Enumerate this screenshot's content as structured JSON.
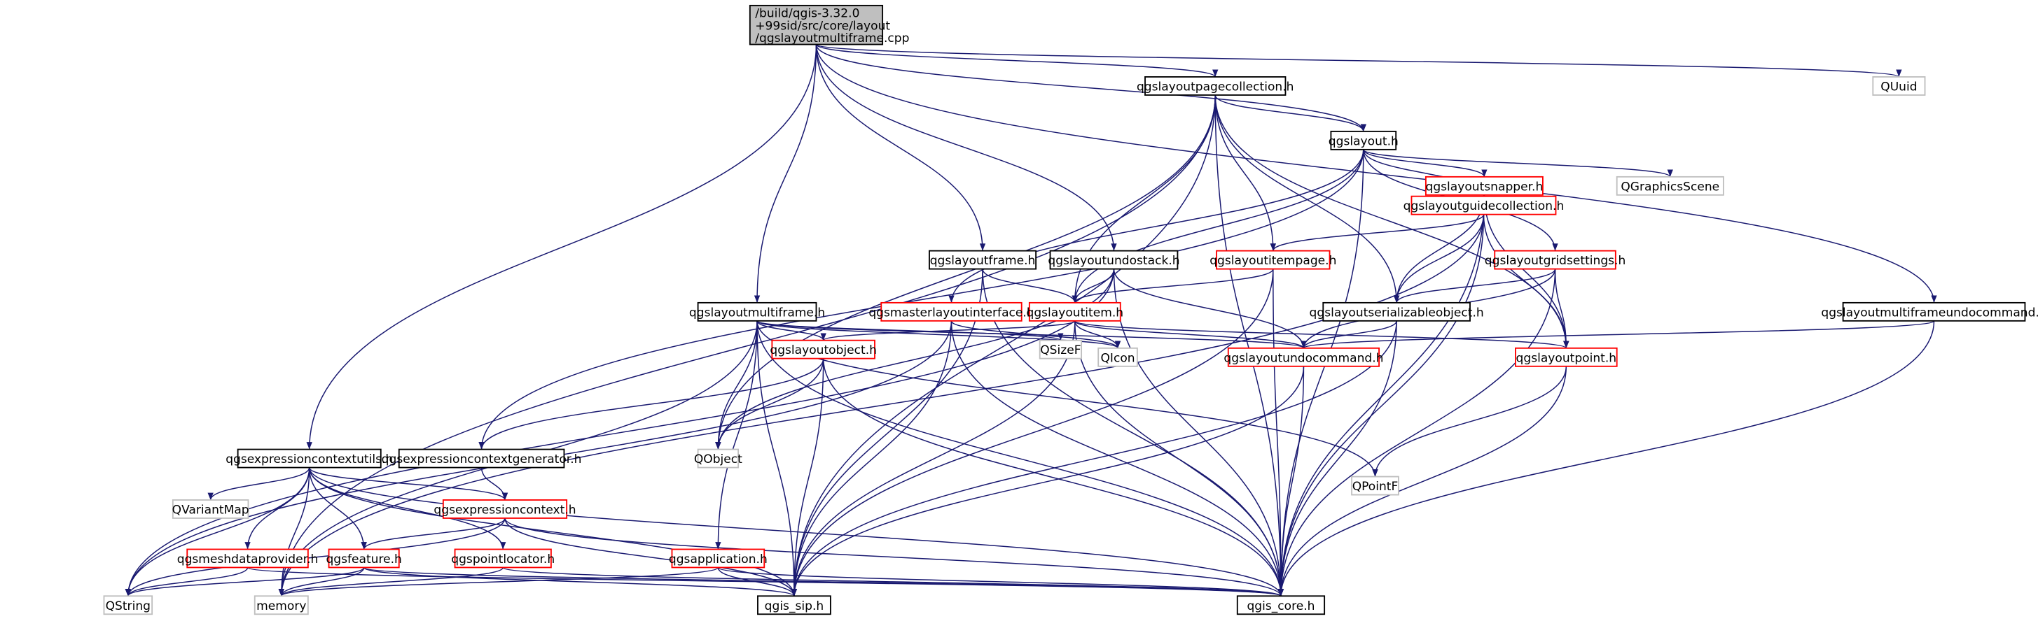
{
  "graph": {
    "type": "include-dependency-graph",
    "colors": {
      "edge": "#191970",
      "root_fill": "#bfbfbf",
      "documented_border": "#000000",
      "truncated_border": "#ff0000",
      "external_border": "#bfbfbf"
    },
    "nodes": [
      {
        "id": "root",
        "lines": [
          "/build/qgis-3.32.0",
          "+99sid/src/core/layout",
          "/qgslayoutmultiframe.cpp"
        ],
        "kind": "root"
      },
      {
        "id": "pagecollection",
        "lines": [
          "qgslayoutpagecollection.h"
        ],
        "kind": "documented"
      },
      {
        "id": "quuid",
        "lines": [
          "QUuid"
        ],
        "kind": "external"
      },
      {
        "id": "layout",
        "lines": [
          "qgslayout.h"
        ],
        "kind": "documented"
      },
      {
        "id": "snapper",
        "lines": [
          "qgslayoutsnapper.h"
        ],
        "kind": "truncated"
      },
      {
        "id": "qgraphicsscene",
        "lines": [
          "QGraphicsScene"
        ],
        "kind": "external"
      },
      {
        "id": "guidecollection",
        "lines": [
          "qgslayoutguidecollection.h"
        ],
        "kind": "truncated"
      },
      {
        "id": "layoutframe",
        "lines": [
          "qgslayoutframe.h"
        ],
        "kind": "documented"
      },
      {
        "id": "undostack",
        "lines": [
          "qgslayoutundostack.h"
        ],
        "kind": "documented"
      },
      {
        "id": "itempage",
        "lines": [
          "qgslayoutitempage.h"
        ],
        "kind": "truncated"
      },
      {
        "id": "gridsettings",
        "lines": [
          "qgslayoutgridsettings.h"
        ],
        "kind": "truncated"
      },
      {
        "id": "multiframe",
        "lines": [
          "qgslayoutmultiframe.h"
        ],
        "kind": "documented"
      },
      {
        "id": "masterlayout",
        "lines": [
          "qgsmasterlayoutinterface.h"
        ],
        "kind": "truncated"
      },
      {
        "id": "layoutitem",
        "lines": [
          "qgslayoutitem.h"
        ],
        "kind": "truncated"
      },
      {
        "id": "serializable",
        "lines": [
          "qgslayoutserializableobject.h"
        ],
        "kind": "documented"
      },
      {
        "id": "mfundocommand",
        "lines": [
          "qgslayoutmultiframeundocommand.h"
        ],
        "kind": "documented"
      },
      {
        "id": "qsizef",
        "lines": [
          "QSizeF"
        ],
        "kind": "external"
      },
      {
        "id": "layoutobject",
        "lines": [
          "qgslayoutobject.h"
        ],
        "kind": "truncated"
      },
      {
        "id": "qicon",
        "lines": [
          "QIcon"
        ],
        "kind": "external"
      },
      {
        "id": "undocommand",
        "lines": [
          "qgslayoutundocommand.h"
        ],
        "kind": "truncated"
      },
      {
        "id": "layoutpoint",
        "lines": [
          "qgslayoutpoint.h"
        ],
        "kind": "truncated"
      },
      {
        "id": "ctxgenerator",
        "lines": [
          "qgsexpressioncontextgenerator.h"
        ],
        "kind": "documented"
      },
      {
        "id": "qobject",
        "lines": [
          "QObject"
        ],
        "kind": "external"
      },
      {
        "id": "qpointf",
        "lines": [
          "QPointF"
        ],
        "kind": "external"
      },
      {
        "id": "ctxutils",
        "lines": [
          "qgsexpressioncontextutils.h"
        ],
        "kind": "documented"
      },
      {
        "id": "qvariantmap",
        "lines": [
          "QVariantMap"
        ],
        "kind": "external"
      },
      {
        "id": "exprcontext",
        "lines": [
          "qgsexpressioncontext.h"
        ],
        "kind": "truncated"
      },
      {
        "id": "meshdataprovider",
        "lines": [
          "qgsmeshdataprovider.h"
        ],
        "kind": "truncated"
      },
      {
        "id": "feature",
        "lines": [
          "qgsfeature.h"
        ],
        "kind": "truncated"
      },
      {
        "id": "pointlocator",
        "lines": [
          "qgspointlocator.h"
        ],
        "kind": "truncated"
      },
      {
        "id": "application",
        "lines": [
          "qgsapplication.h"
        ],
        "kind": "truncated"
      },
      {
        "id": "qstring",
        "lines": [
          "QString"
        ],
        "kind": "external"
      },
      {
        "id": "memory",
        "lines": [
          "memory"
        ],
        "kind": "external"
      },
      {
        "id": "qgissip",
        "lines": [
          "qgis_sip.h"
        ],
        "kind": "documented"
      },
      {
        "id": "qgiscore",
        "lines": [
          "qgis_core.h"
        ],
        "kind": "documented"
      }
    ],
    "edges": [
      [
        "root",
        "pagecollection"
      ],
      [
        "root",
        "quuid"
      ],
      [
        "root",
        "layout"
      ],
      [
        "root",
        "layoutframe"
      ],
      [
        "root",
        "undostack"
      ],
      [
        "root",
        "multiframe"
      ],
      [
        "root",
        "ctxutils"
      ],
      [
        "root",
        "mfundocommand"
      ],
      [
        "pagecollection",
        "layout"
      ],
      [
        "pagecollection",
        "memory"
      ],
      [
        "pagecollection",
        "qobject"
      ],
      [
        "pagecollection",
        "qgissip"
      ],
      [
        "pagecollection",
        "itempage"
      ],
      [
        "pagecollection",
        "serializable"
      ],
      [
        "pagecollection",
        "layoutitem"
      ],
      [
        "pagecollection",
        "layoutpoint"
      ],
      [
        "pagecollection",
        "qgiscore"
      ],
      [
        "layout",
        "snapper"
      ],
      [
        "layout",
        "qgraphicsscene"
      ],
      [
        "layout",
        "guidecollection"
      ],
      [
        "layout",
        "gridsettings"
      ],
      [
        "layout",
        "qgiscore"
      ],
      [
        "layout",
        "masterlayout"
      ],
      [
        "layout",
        "ctxgenerator"
      ],
      [
        "layout",
        "layoutitem"
      ],
      [
        "snapper",
        "guidecollection"
      ],
      [
        "snapper",
        "serializable"
      ],
      [
        "snapper",
        "layoutpoint"
      ],
      [
        "snapper",
        "qgiscore"
      ],
      [
        "guidecollection",
        "itempage"
      ],
      [
        "guidecollection",
        "serializable"
      ],
      [
        "guidecollection",
        "layoutpoint"
      ],
      [
        "guidecollection",
        "qgiscore"
      ],
      [
        "guidecollection",
        "memory"
      ],
      [
        "gridsettings",
        "serializable"
      ],
      [
        "gridsettings",
        "layoutpoint"
      ],
      [
        "gridsettings",
        "undocommand"
      ],
      [
        "gridsettings",
        "qgiscore"
      ],
      [
        "itempage",
        "layoutitem"
      ],
      [
        "itempage",
        "qgissip"
      ],
      [
        "itempage",
        "qgiscore"
      ],
      [
        "layoutframe",
        "layoutitem"
      ],
      [
        "layoutframe",
        "qgiscore"
      ],
      [
        "layoutframe",
        "qgissip"
      ],
      [
        "undostack",
        "layoutitem"
      ],
      [
        "undostack",
        "undocommand"
      ],
      [
        "undostack",
        "qgiscore"
      ],
      [
        "undostack",
        "qobject"
      ],
      [
        "undostack",
        "qstring"
      ],
      [
        "multiframe",
        "qsizef"
      ],
      [
        "multiframe",
        "qobject"
      ],
      [
        "multiframe",
        "layoutobject"
      ],
      [
        "multiframe",
        "undocommand"
      ],
      [
        "multiframe",
        "qicon"
      ],
      [
        "multiframe",
        "qpointf"
      ],
      [
        "multiframe",
        "qgissip"
      ],
      [
        "multiframe",
        "qgiscore"
      ],
      [
        "multiframe",
        "application"
      ],
      [
        "multiframe",
        "memory"
      ],
      [
        "masterlayout",
        "qicon"
      ],
      [
        "masterlayout",
        "qgissip"
      ],
      [
        "masterlayout",
        "qgiscore"
      ],
      [
        "masterlayout",
        "qstring"
      ],
      [
        "layoutitem",
        "layoutobject"
      ],
      [
        "layoutitem",
        "qicon"
      ],
      [
        "layoutitem",
        "undocommand"
      ],
      [
        "layoutitem",
        "layoutpoint"
      ],
      [
        "layoutitem",
        "qgiscore"
      ],
      [
        "layoutitem",
        "qgissip"
      ],
      [
        "serializable",
        "undocommand"
      ],
      [
        "serializable",
        "qgiscore"
      ],
      [
        "serializable",
        "qgissip"
      ],
      [
        "mfundocommand",
        "undocommand"
      ],
      [
        "mfundocommand",
        "qgiscore"
      ],
      [
        "undocommand",
        "qgissip"
      ],
      [
        "undocommand",
        "qgiscore"
      ],
      [
        "layoutpoint",
        "qpointf"
      ],
      [
        "layoutpoint",
        "qgiscore"
      ],
      [
        "layoutobject",
        "ctxgenerator"
      ],
      [
        "layoutobject",
        "qobject"
      ],
      [
        "layoutobject",
        "qgissip"
      ],
      [
        "layoutobject",
        "qgiscore"
      ],
      [
        "ctxgenerator",
        "exprcontext"
      ],
      [
        "ctxutils",
        "qvariantmap"
      ],
      [
        "ctxutils",
        "exprcontext"
      ],
      [
        "ctxutils",
        "meshdataprovider"
      ],
      [
        "ctxutils",
        "feature"
      ],
      [
        "ctxutils",
        "pointlocator"
      ],
      [
        "ctxutils",
        "qstring"
      ],
      [
        "ctxutils",
        "memory"
      ],
      [
        "ctxutils",
        "qgissip"
      ],
      [
        "ctxutils",
        "qgiscore"
      ],
      [
        "exprcontext",
        "feature"
      ],
      [
        "exprcontext",
        "qstring"
      ],
      [
        "exprcontext",
        "qgissip"
      ],
      [
        "exprcontext",
        "qgiscore"
      ],
      [
        "meshdataprovider",
        "qstring"
      ],
      [
        "meshdataprovider",
        "qgiscore"
      ],
      [
        "feature",
        "qstring"
      ],
      [
        "feature",
        "memory"
      ],
      [
        "feature",
        "qgissip"
      ],
      [
        "feature",
        "qgiscore"
      ],
      [
        "pointlocator",
        "memory"
      ],
      [
        "pointlocator",
        "qgiscore"
      ],
      [
        "application",
        "memory"
      ],
      [
        "application",
        "qgissip"
      ],
      [
        "application",
        "qgiscore"
      ]
    ]
  }
}
